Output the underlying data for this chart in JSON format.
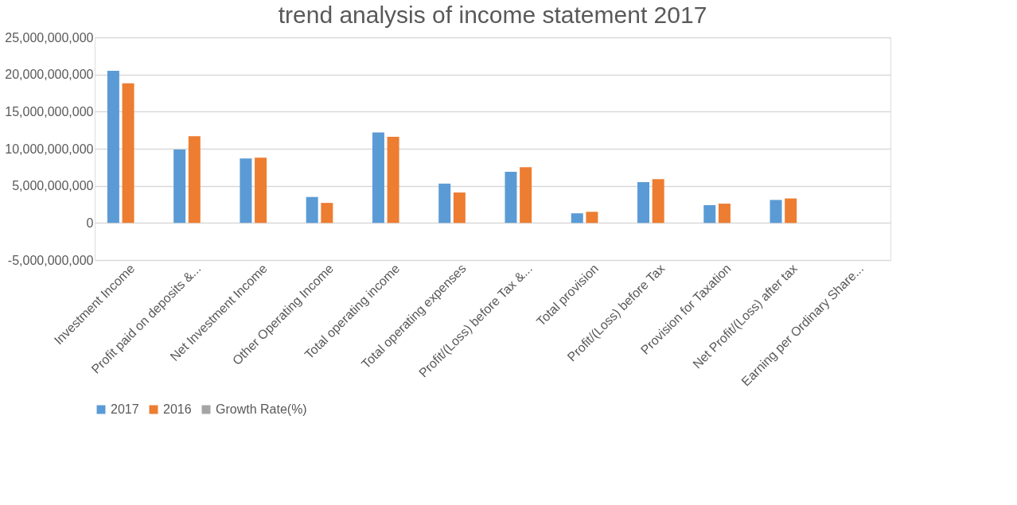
{
  "chart_data": {
    "type": "bar",
    "title": "trend analysis of income statement 2017",
    "categories": [
      "Investment Income",
      "Profit paid on deposits &...",
      "Net Investment Income",
      "Other Operating Income",
      "Total operating income",
      "Total operating expenses",
      "Profit/(Loss) before Tax &...",
      "Total provision",
      "Profit/(Loss) before Tax",
      "Provision for Taxation",
      "Net Profit/(Loss) after tax",
      "Earning per Ordinary Share..."
    ],
    "series": [
      {
        "name": "2017",
        "color": "#5b9bd5",
        "values": [
          20500000000,
          9900000000,
          8700000000,
          3500000000,
          12200000000,
          5300000000,
          6900000000,
          1300000000,
          5500000000,
          2400000000,
          3100000000,
          0
        ]
      },
      {
        "name": "2016",
        "color": "#ed7d31",
        "values": [
          18800000000,
          11700000000,
          8800000000,
          2700000000,
          11600000000,
          4100000000,
          7500000000,
          1500000000,
          5900000000,
          2600000000,
          3300000000,
          0
        ]
      },
      {
        "name": "Growth Rate(%)",
        "color": "#a5a5a5",
        "values": [
          0,
          0,
          0,
          0,
          0,
          0,
          0,
          0,
          0,
          0,
          0,
          0
        ]
      }
    ],
    "ylim": [
      -5000000000,
      25000000000
    ],
    "yticks": [
      {
        "value": -5000000000,
        "label": "-5,000,000,000"
      },
      {
        "value": 0,
        "label": "0"
      },
      {
        "value": 5000000000,
        "label": "5,000,000,000"
      },
      {
        "value": 10000000000,
        "label": "10,000,000,000"
      },
      {
        "value": 15000000000,
        "label": "15,000,000,000"
      },
      {
        "value": 20000000000,
        "label": "20,000,000,000"
      },
      {
        "value": 25000000000,
        "label": "25,000,000,000"
      }
    ],
    "grid": "y",
    "legend": "bottom"
  }
}
